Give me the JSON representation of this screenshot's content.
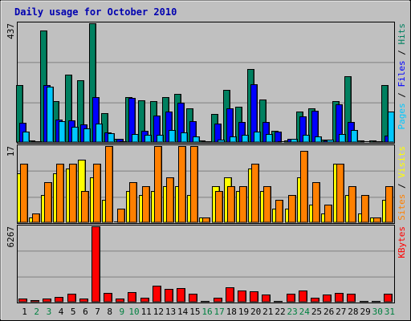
{
  "chart_data": {
    "type": "bar",
    "title": "Daily usage for October 2010",
    "categories": [
      "1",
      "2",
      "3",
      "4",
      "5",
      "6",
      "7",
      "8",
      "9",
      "10",
      "11",
      "12",
      "13",
      "14",
      "15",
      "16",
      "17",
      "18",
      "19",
      "20",
      "21",
      "22",
      "23",
      "24",
      "25",
      "26",
      "27",
      "28",
      "29",
      "30",
      "31"
    ],
    "weekend_days": [
      "2",
      "3",
      "9",
      "10",
      "16",
      "17",
      "23",
      "24",
      "30",
      "31"
    ],
    "panels": [
      {
        "id": "hits-panel",
        "max_label": "437",
        "ymax": 437,
        "right_label": [
          {
            "text": "Pages",
            "color": "#00c8ff"
          },
          {
            "text": " / ",
            "color": "#000000"
          },
          {
            "text": "Files",
            "color": "#0000ff"
          },
          {
            "text": " / ",
            "color": "#000000"
          },
          {
            "text": "Hits",
            "color": "#008060"
          }
        ],
        "series": [
          {
            "name": "Hits",
            "color": "#008060",
            "values": [
              211,
              6,
              409,
              152,
              249,
              227,
              437,
              106,
              13,
              166,
              155,
              150,
              166,
              177,
              123,
              5,
              102,
              192,
              129,
              270,
              157,
              40,
              6,
              112,
              123,
              10,
              152,
              243,
              6,
              5,
              211
            ]
          },
          {
            "name": "Files",
            "color": "#0000ff",
            "values": [
              71,
              4,
              211,
              83,
              80,
              65,
              166,
              35,
              13,
              162,
              40,
              98,
              113,
              144,
              77,
              0,
              67,
              125,
              75,
              213,
              74,
              37,
              12,
              95,
              114,
              6,
              138,
              74,
              0,
              0,
              25
            ]
          },
          {
            "name": "Pages",
            "color": "#00c8ff",
            "values": [
              38,
              3,
              203,
              76,
              57,
              50,
              68,
              33,
              3,
              30,
              26,
              27,
              43,
              36,
              22,
              3,
              10,
              21,
              27,
              38,
              30,
              0,
              12,
              27,
              20,
              10,
              30,
              45,
              0,
              3,
              113
            ]
          }
        ]
      },
      {
        "id": "visits-panel",
        "max_label": "17",
        "ymax": 17,
        "right_label": [
          {
            "text": "Sites",
            "color": "#ff8000"
          },
          {
            "text": " / ",
            "color": "#000000"
          },
          {
            "text": "Visits",
            "color": "#ffff00"
          }
        ],
        "series": [
          {
            "name": "Visits",
            "color": "#ffff00",
            "values": [
              11,
              1,
              6,
              11,
              12,
              14,
              10,
              5,
              0,
              7,
              6,
              7,
              8,
              8,
              6,
              1,
              8,
              10,
              7,
              12,
              7,
              3,
              3,
              10,
              4,
              2,
              13,
              6,
              2,
              1,
              5
            ]
          },
          {
            "name": "Sites",
            "color": "#ff8000",
            "values": [
              13,
              2,
              9,
              13,
              13,
              7,
              13,
              17,
              3,
              9,
              8,
              17,
              10,
              17,
              17,
              1,
              7,
              8,
              8,
              13,
              8,
              5,
              6,
              16,
              9,
              4,
              13,
              8,
              6,
              1,
              8
            ]
          }
        ]
      },
      {
        "id": "kbytes-panel",
        "max_label": "6267",
        "ymax": 6267,
        "right_label": [
          {
            "text": "KBytes",
            "color": "#ff0000"
          }
        ],
        "series": [
          {
            "name": "KBytes",
            "color": "#ff0000",
            "values": [
              284,
              142,
              284,
              426,
              640,
              284,
              6267,
              710,
              284,
              782,
              355,
              1350,
              1066,
              1137,
              640,
              71,
              355,
              1208,
              924,
              853,
              569,
              71,
              640,
              924,
              355,
              569,
              710,
              640,
              71,
              71,
              640
            ]
          }
        ]
      }
    ]
  }
}
